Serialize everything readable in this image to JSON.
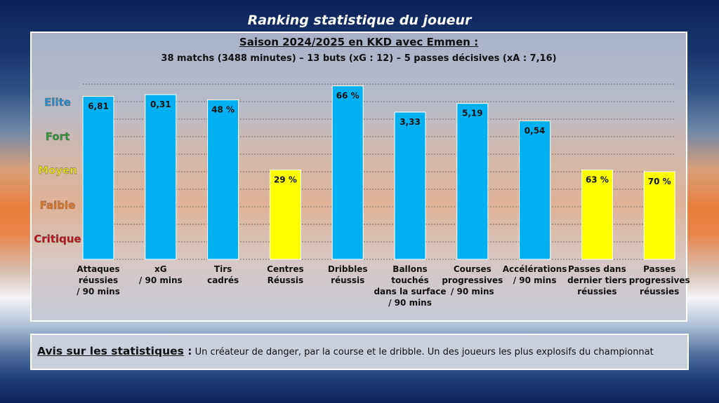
{
  "title": "Ranking statistique du joueur",
  "subtitle": "Saison 2024/2025 en KKD avec Emmen :",
  "subtitle2": "38 matchs (3488 minutes) – 13 buts (xG : 12) – 5 passes décisives (xA : 7,16)",
  "levels": [
    {
      "label": "Elite",
      "color": "#1f8fd6"
    },
    {
      "label": "Fort",
      "color": "#2e9a3a"
    },
    {
      "label": "Moyen",
      "color": "#e8e01a"
    },
    {
      "label": "Faible",
      "color": "#e0782a"
    },
    {
      "label": "Critique",
      "color": "#c0141c"
    }
  ],
  "colors": {
    "blue": "#00b0f0",
    "yellow": "#ffff00"
  },
  "chart_data": {
    "type": "bar",
    "categories": [
      "Attaques réussies / 90 mins",
      "xG / 90 mins",
      "Tirs cadrés",
      "Centres Réussis",
      "Dribbles réussis",
      "Ballons touchés dans la surface / 90 mins",
      "Courses progressives / 90 mins",
      "Accélérations / 90 mins",
      "Passes dans dernier tiers réussies",
      "Passes progressives réussies"
    ],
    "category_lines": [
      [
        "Attaques",
        "réussies",
        "/ 90 mins"
      ],
      [
        "xG",
        "/ 90 mins"
      ],
      [
        "Tirs",
        "cadrés"
      ],
      [
        "Centres",
        "Réussis"
      ],
      [
        "Dribbles",
        "réussis"
      ],
      [
        "Ballons",
        "touchés",
        "dans la surface",
        "/ 90 mins"
      ],
      [
        "Courses",
        "progressives",
        "/ 90 mins"
      ],
      [
        "Accélérations",
        "/ 90 mins"
      ],
      [
        "Passes dans",
        "dernier tiers",
        "réussies"
      ],
      [
        "Passes",
        "progressives",
        "réussies"
      ]
    ],
    "value_labels": [
      "6,81",
      "0,31",
      "48 %",
      "29 %",
      "66 %",
      "3,33",
      "5,19",
      "0,54",
      "63 %",
      "70 %"
    ],
    "ranking_level": [
      9.3,
      9.4,
      9.1,
      5.1,
      9.9,
      8.4,
      8.9,
      7.9,
      5.1,
      5.0
    ],
    "bar_color": [
      "blue",
      "blue",
      "blue",
      "yellow",
      "blue",
      "blue",
      "blue",
      "blue",
      "yellow",
      "yellow"
    ],
    "ylim": [
      0,
      10
    ],
    "grid": true
  },
  "avis": {
    "label": "Avis sur les statistiques",
    "colon": " :",
    "text": " Un créateur de danger, par la course et le dribble. Un des joueurs les plus explosifs du championnat"
  }
}
